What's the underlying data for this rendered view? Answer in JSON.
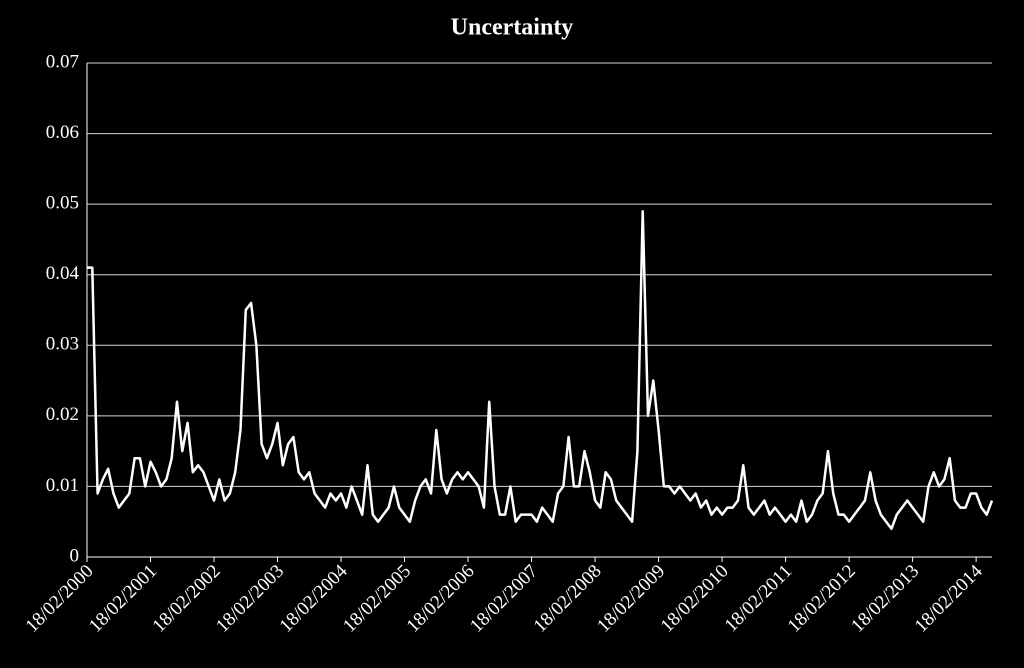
{
  "chart_data": {
    "type": "line",
    "title": "Uncertainty",
    "categories": [
      "18/02/2000",
      null,
      null,
      null,
      null,
      null,
      null,
      null,
      null,
      null,
      null,
      null,
      "18/02/2001",
      null,
      null,
      null,
      null,
      null,
      null,
      null,
      null,
      null,
      null,
      null,
      "18/02/2002",
      null,
      null,
      null,
      null,
      null,
      null,
      null,
      null,
      null,
      null,
      null,
      "18/02/2003",
      null,
      null,
      null,
      null,
      null,
      null,
      null,
      null,
      null,
      null,
      null,
      "18/02/2004",
      null,
      null,
      null,
      null,
      null,
      null,
      null,
      null,
      null,
      null,
      null,
      "18/02/2005",
      null,
      null,
      null,
      null,
      null,
      null,
      null,
      null,
      null,
      null,
      null,
      "18/02/2006",
      null,
      null,
      null,
      null,
      null,
      null,
      null,
      null,
      null,
      null,
      null,
      "18/02/2007",
      null,
      null,
      null,
      null,
      null,
      null,
      null,
      null,
      null,
      null,
      null,
      "18/02/2008",
      null,
      null,
      null,
      null,
      null,
      null,
      null,
      null,
      null,
      null,
      null,
      "18/02/2009",
      null,
      null,
      null,
      null,
      null,
      null,
      null,
      null,
      null,
      null,
      null,
      "18/02/2010",
      null,
      null,
      null,
      null,
      null,
      null,
      null,
      null,
      null,
      null,
      null,
      "18/02/2011",
      null,
      null,
      null,
      null,
      null,
      null,
      null,
      null,
      null,
      null,
      null,
      "18/02/2012",
      null,
      null,
      null,
      null,
      null,
      null,
      null,
      null,
      null,
      null,
      null,
      "18/02/2013",
      null,
      null,
      null,
      null,
      null,
      null,
      null,
      null,
      null,
      null,
      null,
      "18/02/2014",
      null,
      null,
      null
    ],
    "values": [
      0.041,
      0.041,
      0.009,
      0.011,
      0.0125,
      0.009,
      0.007,
      0.008,
      0.009,
      0.014,
      0.014,
      0.01,
      0.0135,
      0.012,
      0.01,
      0.011,
      0.014,
      0.022,
      0.015,
      0.019,
      0.012,
      0.013,
      0.012,
      0.01,
      0.008,
      0.011,
      0.008,
      0.009,
      0.012,
      0.018,
      0.035,
      0.036,
      0.03,
      0.016,
      0.014,
      0.016,
      0.019,
      0.013,
      0.016,
      0.017,
      0.012,
      0.011,
      0.012,
      0.009,
      0.008,
      0.007,
      0.009,
      0.008,
      0.009,
      0.007,
      0.01,
      0.008,
      0.006,
      0.013,
      0.006,
      0.005,
      0.006,
      0.007,
      0.01,
      0.007,
      0.006,
      0.005,
      0.008,
      0.01,
      0.011,
      0.009,
      0.018,
      0.011,
      0.009,
      0.011,
      0.012,
      0.011,
      0.012,
      0.011,
      0.01,
      0.007,
      0.022,
      0.01,
      0.006,
      0.006,
      0.01,
      0.005,
      0.006,
      0.006,
      0.006,
      0.005,
      0.007,
      0.006,
      0.005,
      0.009,
      0.01,
      0.017,
      0.01,
      0.01,
      0.015,
      0.012,
      0.008,
      0.007,
      0.012,
      0.011,
      0.008,
      0.007,
      0.006,
      0.005,
      0.015,
      0.049,
      0.02,
      0.025,
      0.018,
      0.01,
      0.01,
      0.009,
      0.01,
      0.009,
      0.008,
      0.009,
      0.007,
      0.008,
      0.006,
      0.007,
      0.006,
      0.007,
      0.007,
      0.008,
      0.013,
      0.007,
      0.006,
      0.007,
      0.008,
      0.006,
      0.007,
      0.006,
      0.005,
      0.006,
      0.005,
      0.008,
      0.005,
      0.006,
      0.008,
      0.009,
      0.015,
      0.009,
      0.006,
      0.006,
      0.005,
      0.006,
      0.007,
      0.008,
      0.012,
      0.008,
      0.006,
      0.005,
      0.004,
      0.006,
      0.007,
      0.008,
      0.007,
      0.006,
      0.005,
      0.01,
      0.012,
      0.01,
      0.011,
      0.014,
      0.008,
      0.007,
      0.007,
      0.009,
      0.009,
      0.007,
      0.006,
      0.008
    ],
    "color": "#ffffff",
    "ylim": [
      0,
      0.07
    ],
    "yticks": [
      0,
      0.01,
      0.02,
      0.03,
      0.04,
      0.05,
      0.06,
      0.07
    ],
    "grid": true
  }
}
